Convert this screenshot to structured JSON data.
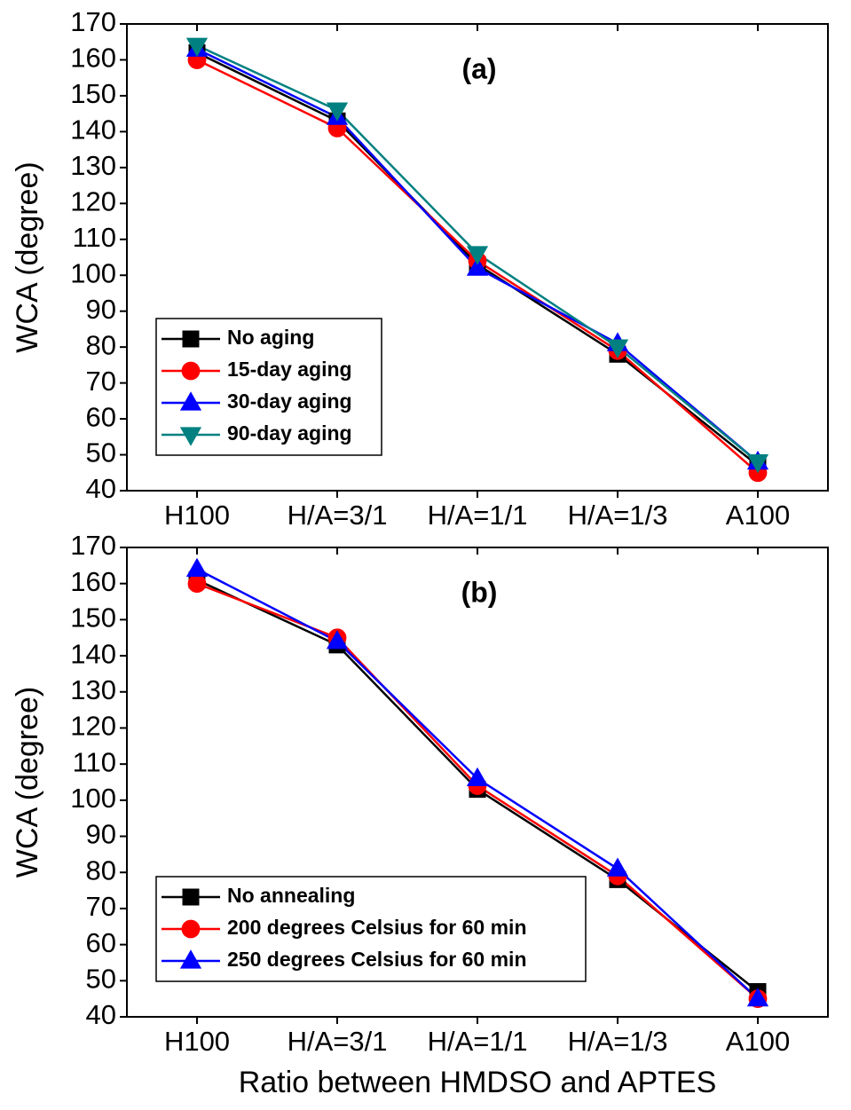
{
  "chart_data": [
    {
      "type": "line",
      "title": "(a)",
      "ylabel": "WCA (degree)",
      "categories": [
        "H100",
        "H/A=3/1",
        "H/A=1/1",
        "H/A=1/3",
        "A100"
      ],
      "series": [
        {
          "name": "No aging",
          "color": "#000000",
          "marker": "square",
          "values": [
            162,
            143,
            103,
            78,
            47
          ]
        },
        {
          "name": "15-day aging",
          "color": "#ff0000",
          "marker": "circle",
          "values": [
            160,
            141,
            104,
            79,
            45
          ]
        },
        {
          "name": "30-day aging",
          "color": "#0000ff",
          "marker": "triangle-up",
          "values": [
            163,
            144,
            102,
            81,
            48
          ]
        },
        {
          "name": "90-day aging",
          "color": "#008080",
          "marker": "triangle-down",
          "values": [
            164,
            146,
            106,
            80,
            48
          ]
        }
      ],
      "ylim": [
        40,
        170
      ],
      "yticks": [
        40,
        50,
        60,
        70,
        80,
        90,
        100,
        110,
        120,
        130,
        140,
        150,
        160,
        170
      ],
      "legend": "lower left"
    },
    {
      "type": "line",
      "title": "(b)",
      "ylabel": "WCA (degree)",
      "xlabel": "Ratio between HMDSO and APTES",
      "categories": [
        "H100",
        "H/A=3/1",
        "H/A=1/1",
        "H/A=1/3",
        "A100"
      ],
      "series": [
        {
          "name": "No annealing",
          "color": "#000000",
          "marker": "square",
          "values": [
            161,
            143,
            103,
            78,
            47
          ]
        },
        {
          "name": "200 degrees Celsius for 60 min",
          "color": "#ff0000",
          "marker": "circle",
          "values": [
            160,
            145,
            104,
            79,
            45
          ]
        },
        {
          "name": "250 degrees Celsius for 60 min",
          "color": "#0000ff",
          "marker": "triangle-up",
          "values": [
            164,
            144,
            106,
            81,
            45
          ]
        }
      ],
      "ylim": [
        40,
        170
      ],
      "yticks": [
        40,
        50,
        60,
        70,
        80,
        90,
        100,
        110,
        120,
        130,
        140,
        150,
        160,
        170
      ],
      "legend": "lower left"
    }
  ]
}
